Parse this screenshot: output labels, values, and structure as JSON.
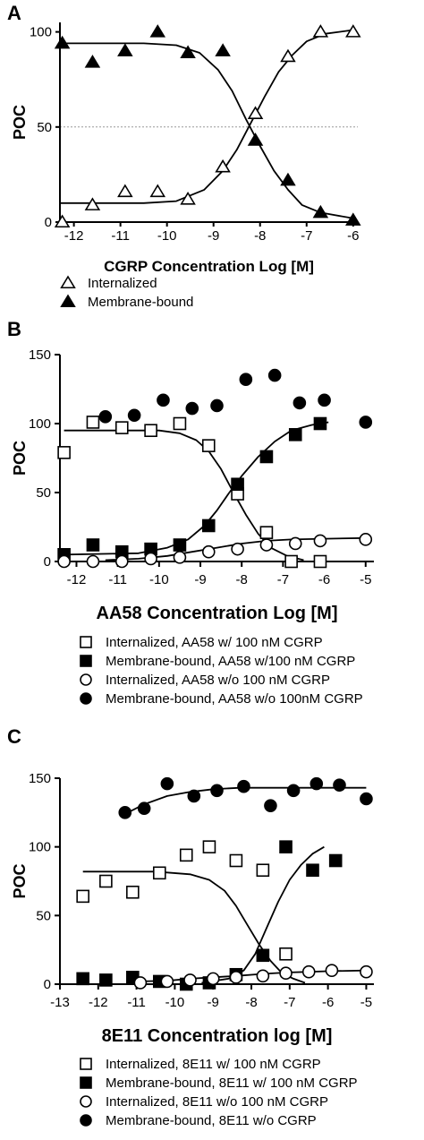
{
  "chart_data": [
    {
      "panel": "A",
      "type": "scatter",
      "xlabel": "CGRP Concentration Log [M]",
      "ylabel": "POC",
      "xlim": [
        -12.3,
        -5.9
      ],
      "ylim": [
        0,
        105
      ],
      "xticks": [
        -12,
        -11,
        -10,
        -9,
        -8,
        -7,
        -6
      ],
      "yticks": [
        0,
        50,
        100
      ],
      "reference_line_y": 50,
      "legend_position": "bottom-left",
      "series": [
        {
          "name": "Internalized",
          "marker": "open-triangle",
          "x": [
            -12.25,
            -11.6,
            -10.9,
            -10.2,
            -9.55,
            -8.8,
            -8.1,
            -7.4,
            -6.7,
            -6.0
          ],
          "y": [
            0,
            9,
            16,
            16,
            12,
            29,
            57,
            87,
            100,
            100
          ],
          "fit": [
            [
              -12.3,
              10
            ],
            [
              -10.5,
              10
            ],
            [
              -9.8,
              11
            ],
            [
              -9.2,
              17
            ],
            [
              -8.8,
              27
            ],
            [
              -8.5,
              38
            ],
            [
              -8.2,
              52
            ],
            [
              -7.9,
              66
            ],
            [
              -7.6,
              79
            ],
            [
              -7.3,
              88
            ],
            [
              -7.0,
              95
            ],
            [
              -6.6,
              99
            ],
            [
              -6.0,
              101
            ]
          ]
        },
        {
          "name": "Membrane-bound",
          "marker": "filled-triangle",
          "x": [
            -12.25,
            -11.6,
            -10.9,
            -10.2,
            -9.55,
            -8.8,
            -8.1,
            -7.4,
            -6.7,
            -6.0
          ],
          "y": [
            94,
            84,
            90,
            100,
            89,
            90,
            43,
            22,
            5,
            1
          ],
          "fit": [
            [
              -12.3,
              94
            ],
            [
              -10.5,
              94
            ],
            [
              -9.8,
              93
            ],
            [
              -9.3,
              89
            ],
            [
              -8.9,
              80
            ],
            [
              -8.6,
              69
            ],
            [
              -8.3,
              54
            ],
            [
              -8.0,
              40
            ],
            [
              -7.7,
              27
            ],
            [
              -7.4,
              17
            ],
            [
              -7.1,
              9
            ],
            [
              -6.7,
              5
            ],
            [
              -6.0,
              2
            ]
          ]
        }
      ]
    },
    {
      "panel": "B",
      "type": "scatter",
      "xlabel": "AA58 Concentration Log [M]",
      "ylabel": "POC",
      "xlim": [
        -12.4,
        -4.8
      ],
      "ylim": [
        0,
        150
      ],
      "xticks": [
        -12,
        -11,
        -10,
        -9,
        -8,
        -7,
        -6,
        -5
      ],
      "yticks": [
        0,
        50,
        100,
        150
      ],
      "legend_position": "bottom-left",
      "series": [
        {
          "name": "Internalized, AA58 w/ 100 nM CGRP",
          "marker": "open-square",
          "x": [
            -12.3,
            -11.6,
            -10.9,
            -10.2,
            -9.5,
            -8.8,
            -8.1,
            -7.4,
            -6.8,
            -6.1
          ],
          "y": [
            79,
            101,
            97,
            95,
            100,
            84,
            49,
            21,
            0,
            0
          ],
          "fit": [
            [
              -12.3,
              95
            ],
            [
              -10.0,
              95
            ],
            [
              -9.5,
              93
            ],
            [
              -9.1,
              88
            ],
            [
              -8.8,
              80
            ],
            [
              -8.5,
              67
            ],
            [
              -8.2,
              50
            ],
            [
              -7.9,
              34
            ],
            [
              -7.6,
              20
            ],
            [
              -7.3,
              10
            ],
            [
              -6.9,
              4
            ],
            [
              -6.5,
              1
            ]
          ]
        },
        {
          "name": "Membrane-bound, AA58 w/100 nM CGRP",
          "marker": "filled-square",
          "x": [
            -12.3,
            -11.6,
            -10.9,
            -10.2,
            -9.5,
            -8.8,
            -8.1,
            -7.4,
            -6.7,
            -6.1
          ],
          "y": [
            5,
            12,
            7,
            9,
            12,
            26,
            56,
            76,
            92,
            100
          ],
          "fit": [
            [
              -12.3,
              5
            ],
            [
              -10.5,
              6
            ],
            [
              -9.8,
              10
            ],
            [
              -9.3,
              16
            ],
            [
              -8.9,
              26
            ],
            [
              -8.6,
              37
            ],
            [
              -8.3,
              50
            ],
            [
              -8.0,
              62
            ],
            [
              -7.6,
              76
            ],
            [
              -7.2,
              87
            ],
            [
              -6.8,
              95
            ],
            [
              -6.3,
              99
            ],
            [
              -5.9,
              101
            ]
          ]
        },
        {
          "name": "Internalized, AA58 w/o 100 nM CGRP",
          "marker": "open-circle",
          "x": [
            -12.3,
            -11.6,
            -10.9,
            -10.2,
            -9.5,
            -8.8,
            -8.1,
            -7.4,
            -6.7,
            -6.1,
            -5.0
          ],
          "y": [
            0,
            0,
            0,
            2,
            3,
            7,
            9,
            12,
            13,
            15,
            16
          ],
          "fit": [
            [
              -11.3,
              1
            ],
            [
              -10.5,
              2
            ],
            [
              -9.8,
              4
            ],
            [
              -9.2,
              7
            ],
            [
              -8.6,
              10
            ],
            [
              -8.0,
              13
            ],
            [
              -7.4,
              15
            ],
            [
              -6.8,
              16
            ],
            [
              -6.0,
              16.5
            ],
            [
              -5.0,
              17
            ]
          ]
        },
        {
          "name": "Membrane-bound, AA58 w/o 100nM CGRP",
          "marker": "filled-circle",
          "x": [
            -11.3,
            -10.6,
            -9.9,
            -9.2,
            -8.6,
            -7.9,
            -7.2,
            -6.6,
            -6.0,
            -5.0
          ],
          "y": [
            105,
            106,
            117,
            111,
            113,
            132,
            135,
            115,
            117,
            101
          ],
          "fit": []
        }
      ]
    },
    {
      "panel": "C",
      "type": "scatter",
      "xlabel": "8E11 Concentration log [M]",
      "ylabel": "POC",
      "xlim": [
        -13,
        -4.8
      ],
      "ylim": [
        0,
        150
      ],
      "xticks": [
        -13,
        -12,
        -11,
        -10,
        -9,
        -8,
        -7,
        -6,
        -5
      ],
      "yticks": [
        0,
        50,
        100,
        150
      ],
      "legend_position": "bottom-left",
      "series": [
        {
          "name": "Internalized, 8E11 w/ 100 nM CGRP",
          "marker": "open-square",
          "x": [
            -12.4,
            -11.8,
            -11.1,
            -10.4,
            -9.7,
            -9.1,
            -8.4,
            -7.7,
            -7.1
          ],
          "y": [
            64,
            75,
            67,
            81,
            94,
            100,
            90,
            83,
            22
          ],
          "fit": [
            [
              -12.4,
              82
            ],
            [
              -10.5,
              82
            ],
            [
              -9.6,
              80
            ],
            [
              -9.1,
              76
            ],
            [
              -8.7,
              68
            ],
            [
              -8.4,
              57
            ],
            [
              -8.1,
              43
            ],
            [
              -7.8,
              29
            ],
            [
              -7.5,
              17
            ],
            [
              -7.2,
              8
            ],
            [
              -6.9,
              4
            ],
            [
              -6.6,
              1
            ]
          ]
        },
        {
          "name": "Membrane-bound, 8E11 w/ 100 nM CGRP",
          "marker": "filled-square",
          "x": [
            -12.4,
            -11.8,
            -11.1,
            -10.4,
            -9.7,
            -9.1,
            -8.4,
            -7.7,
            -7.1,
            -6.4,
            -5.8
          ],
          "y": [
            4,
            3,
            5,
            2,
            0,
            1,
            7,
            21,
            100,
            83,
            90
          ],
          "fit": [
            [
              -9.3,
              1
            ],
            [
              -8.6,
              4
            ],
            [
              -8.2,
              10
            ],
            [
              -7.9,
              22
            ],
            [
              -7.6,
              41
            ],
            [
              -7.3,
              60
            ],
            [
              -7.0,
              76
            ],
            [
              -6.7,
              87
            ],
            [
              -6.4,
              95
            ],
            [
              -6.1,
              100
            ]
          ]
        },
        {
          "name": "Internalized, 8E11 w/o 100 nM CGRP",
          "marker": "open-circle",
          "x": [
            -10.9,
            -10.2,
            -9.6,
            -9.0,
            -8.4,
            -7.7,
            -7.1,
            -6.5,
            -5.9,
            -5.0
          ],
          "y": [
            1,
            2,
            3,
            4,
            5,
            6,
            8,
            9,
            10,
            9
          ],
          "fit": [
            [
              -10.9,
              2
            ],
            [
              -10.2,
              2.5
            ],
            [
              -9.6,
              4
            ],
            [
              -9.0,
              5
            ],
            [
              -8.4,
              6
            ],
            [
              -7.7,
              7.5
            ],
            [
              -7.1,
              8.5
            ],
            [
              -6.5,
              9
            ],
            [
              -5.9,
              9.5
            ],
            [
              -5.0,
              10
            ]
          ]
        },
        {
          "name": "Membrane-bound, 8E11 w/o CGRP",
          "marker": "filled-circle",
          "x": [
            -11.3,
            -10.8,
            -10.2,
            -9.5,
            -8.9,
            -8.2,
            -7.5,
            -6.9,
            -6.3,
            -5.7,
            -5.0
          ],
          "y": [
            125,
            128,
            146,
            137,
            141,
            144,
            130,
            141,
            146,
            145,
            135
          ],
          "fit": [
            [
              -11.3,
              124
            ],
            [
              -10.8,
              131
            ],
            [
              -10.2,
              137
            ],
            [
              -9.6,
              140
            ],
            [
              -9.0,
              142
            ],
            [
              -8.3,
              143
            ],
            [
              -7.5,
              143
            ],
            [
              -6.5,
              143
            ],
            [
              -5.0,
              143
            ]
          ]
        }
      ]
    }
  ]
}
